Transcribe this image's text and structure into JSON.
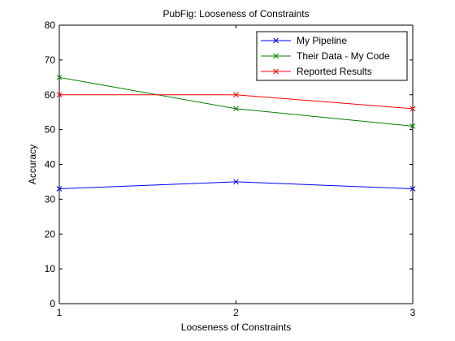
{
  "chart_data": {
    "type": "line",
    "title": "PubFig: Looseness of Constraints",
    "xlabel": "Looseness of Constraints",
    "ylabel": "Accuracy",
    "xlim": [
      1,
      3
    ],
    "ylim": [
      0,
      80
    ],
    "xticks": [
      "1",
      "2",
      "3"
    ],
    "yticks": [
      "0",
      "10",
      "20",
      "30",
      "40",
      "50",
      "60",
      "70",
      "80"
    ],
    "x": [
      1,
      2,
      3
    ],
    "grid": false,
    "legend_position": "top-right",
    "marker": "x",
    "series": [
      {
        "name": "My Pipeline",
        "color": "#0000ff",
        "values": [
          33,
          35,
          33
        ]
      },
      {
        "name": "Their Data - My Code",
        "color": "#008000",
        "values": [
          65,
          56,
          51
        ]
      },
      {
        "name": "Reported Results",
        "color": "#ff0000",
        "values": [
          60,
          60,
          56
        ]
      }
    ]
  }
}
